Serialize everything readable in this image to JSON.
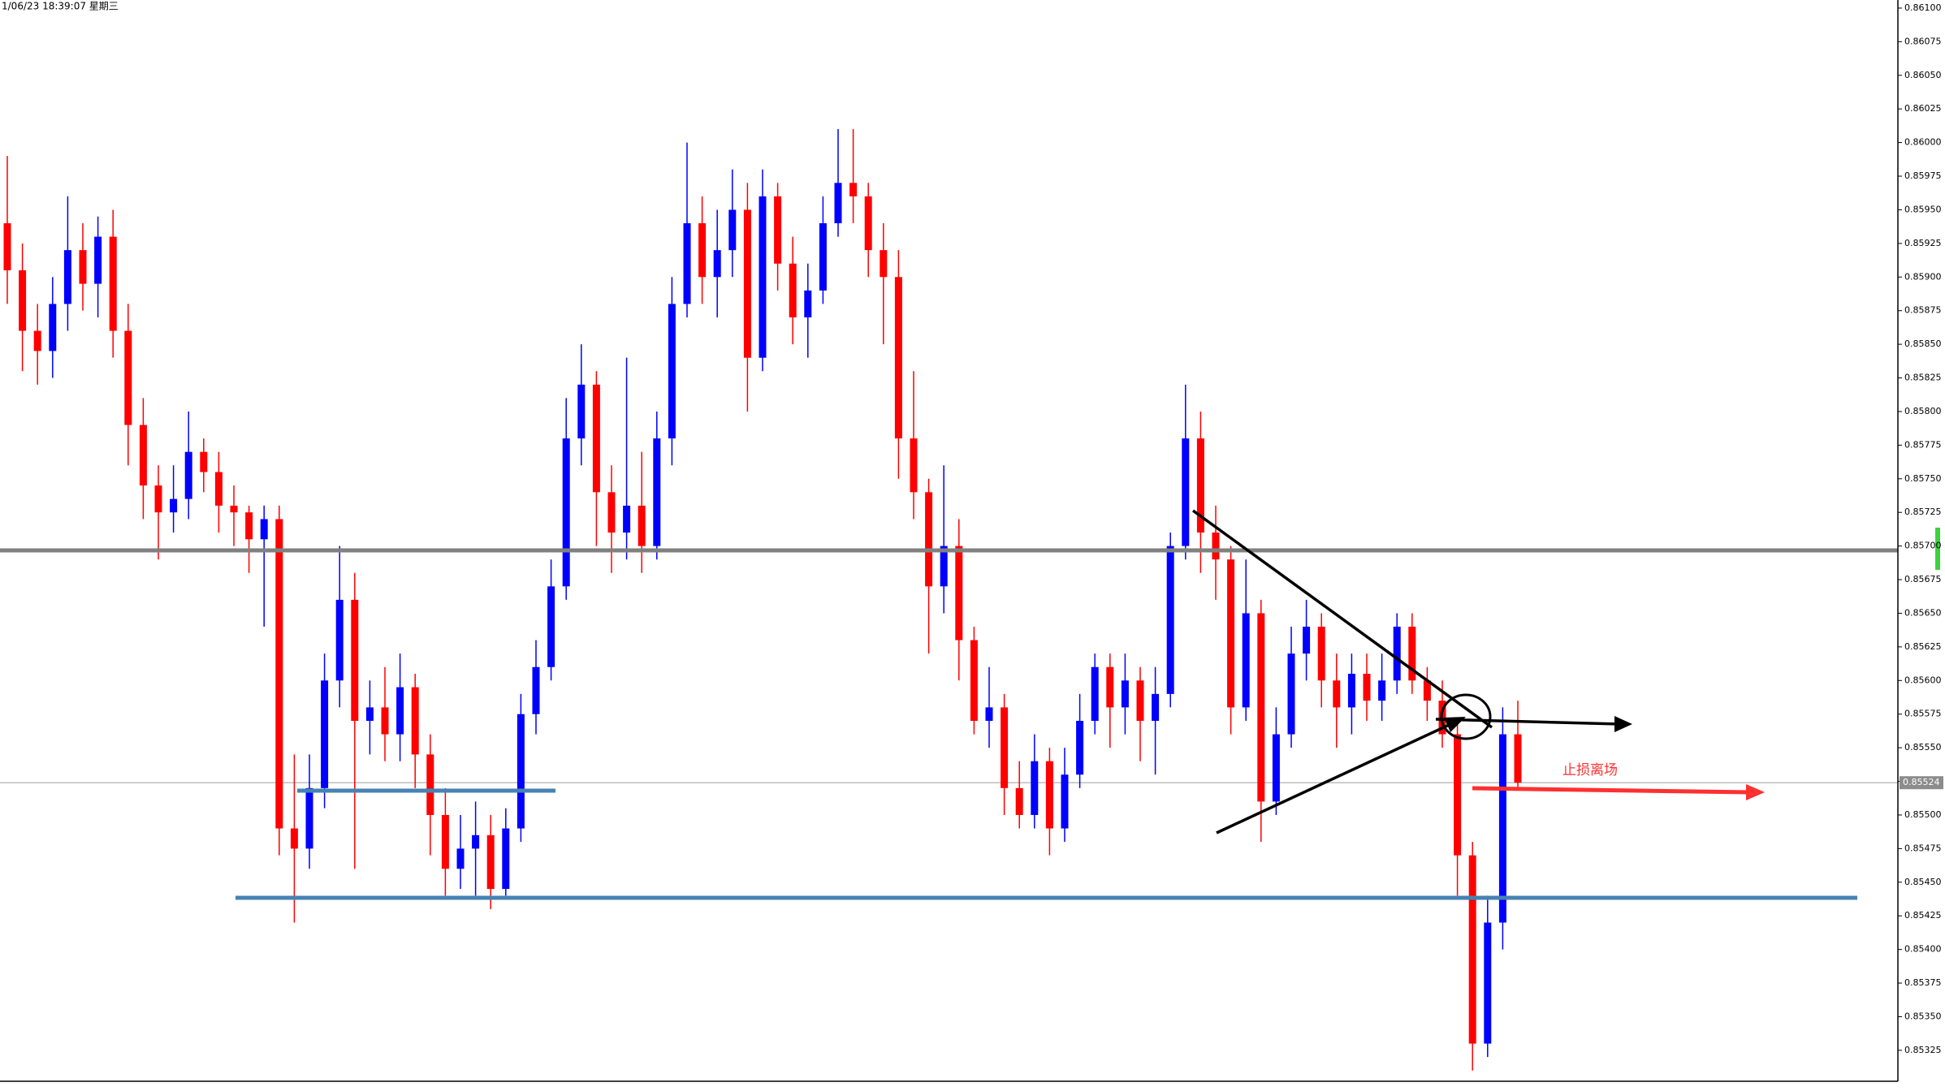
{
  "chart_data": {
    "type": "candlestick",
    "timestamp": "1/06/23 18:39:07 星期三",
    "annotation": "止损离场",
    "up_color": "#0000ff",
    "down_color": "#ff0000",
    "last_price": 0.85524,
    "ylim": [
      0.85302,
      0.86106
    ],
    "yticks": [
      {
        "value": 0.85325,
        "label": "0.85325"
      },
      {
        "value": 0.8535,
        "label": "0.85350"
      },
      {
        "value": 0.85375,
        "label": "0.85375"
      },
      {
        "value": 0.854,
        "label": "0.85400"
      },
      {
        "value": 0.85425,
        "label": "0.85425"
      },
      {
        "value": 0.8545,
        "label": "0.85450"
      },
      {
        "value": 0.85475,
        "label": "0.85475"
      },
      {
        "value": 0.855,
        "label": "0.85500"
      },
      {
        "value": 0.85525,
        "label": "0.85525"
      },
      {
        "value": 0.8555,
        "label": "0.85550"
      },
      {
        "value": 0.85575,
        "label": "0.85575"
      },
      {
        "value": 0.856,
        "label": "0.85600"
      },
      {
        "value": 0.85625,
        "label": "0.85625"
      },
      {
        "value": 0.8565,
        "label": "0.85650"
      },
      {
        "value": 0.85675,
        "label": "0.85675"
      },
      {
        "value": 0.857,
        "label": "0.85700"
      },
      {
        "value": 0.85725,
        "label": "0.85725"
      },
      {
        "value": 0.8575,
        "label": "0.85750"
      },
      {
        "value": 0.85775,
        "label": "0.85775"
      },
      {
        "value": 0.858,
        "label": "0.85800"
      },
      {
        "value": 0.85825,
        "label": "0.85825"
      },
      {
        "value": 0.8585,
        "label": "0.85850"
      },
      {
        "value": 0.85875,
        "label": "0.85875"
      },
      {
        "value": 0.859,
        "label": "0.85900"
      },
      {
        "value": 0.85925,
        "label": "0.85925"
      },
      {
        "value": 0.8595,
        "label": "0.85950"
      },
      {
        "value": 0.85975,
        "label": "0.85975"
      },
      {
        "value": 0.86,
        "label": "0.86000"
      },
      {
        "value": 0.86025,
        "label": "0.86025"
      },
      {
        "value": 0.8605,
        "label": "0.86050"
      },
      {
        "value": 0.86075,
        "label": "0.86075"
      },
      {
        "value": 0.861,
        "label": "0.86100"
      }
    ],
    "open": [
      0.8594,
      0.85905,
      0.8586,
      0.85845,
      0.8588,
      0.8592,
      0.85895,
      0.8593,
      0.8586,
      0.8579,
      0.85745,
      0.85725,
      0.85735,
      0.8577,
      0.85755,
      0.8573,
      0.85725,
      0.85705,
      0.8572,
      0.8549,
      0.85475,
      0.8552,
      0.856,
      0.8566,
      0.8557,
      0.8558,
      0.8556,
      0.85595,
      0.85545,
      0.855,
      0.8546,
      0.85475,
      0.85485,
      0.85445,
      0.8549,
      0.85575,
      0.8561,
      0.8567,
      0.8578,
      0.8582,
      0.8574,
      0.8571,
      0.8573,
      0.857,
      0.8578,
      0.8588,
      0.8594,
      0.859,
      0.8592,
      0.8595,
      0.8584,
      0.8596,
      0.8591,
      0.8587,
      0.8589,
      0.8594,
      0.8597,
      0.8596,
      0.8592,
      0.859,
      0.8578,
      0.8574,
      0.8567,
      0.857,
      0.8563,
      0.8557,
      0.8558,
      0.8552,
      0.855,
      0.8554,
      0.8549,
      0.8553,
      0.8557,
      0.8561,
      0.8558,
      0.856,
      0.8557,
      0.8559,
      0.857,
      0.8578,
      0.8571,
      0.8569,
      0.8558,
      0.8565,
      0.8551,
      0.8556,
      0.8562,
      0.8564,
      0.856,
      0.8558,
      0.85605,
      0.85585,
      0.856,
      0.8564,
      0.856,
      0.85585,
      0.8556,
      0.8547,
      0.8533,
      0.8542,
      0.8556
    ],
    "high": [
      0.8599,
      0.85925,
      0.8588,
      0.859,
      0.8596,
      0.8594,
      0.85945,
      0.8595,
      0.8588,
      0.8581,
      0.8576,
      0.8576,
      0.858,
      0.8578,
      0.8577,
      0.85745,
      0.8573,
      0.8573,
      0.8573,
      0.85545,
      0.85545,
      0.8562,
      0.857,
      0.8568,
      0.856,
      0.8561,
      0.8562,
      0.85605,
      0.8556,
      0.8552,
      0.855,
      0.8551,
      0.855,
      0.85505,
      0.8559,
      0.8563,
      0.8569,
      0.8581,
      0.8585,
      0.8583,
      0.8576,
      0.8584,
      0.8577,
      0.858,
      0.859,
      0.86,
      0.8596,
      0.8595,
      0.8598,
      0.8597,
      0.8598,
      0.8597,
      0.8593,
      0.8591,
      0.8596,
      0.8601,
      0.8601,
      0.8597,
      0.8594,
      0.8592,
      0.8583,
      0.8575,
      0.8576,
      0.8572,
      0.8564,
      0.8561,
      0.8559,
      0.8554,
      0.8556,
      0.8555,
      0.8555,
      0.8559,
      0.8562,
      0.8562,
      0.8562,
      0.8561,
      0.8561,
      0.8571,
      0.8582,
      0.858,
      0.8573,
      0.857,
      0.8569,
      0.8566,
      0.8558,
      0.8564,
      0.8566,
      0.8565,
      0.8562,
      0.8562,
      0.8562,
      0.8562,
      0.8565,
      0.8565,
      0.8561,
      0.856,
      0.8557,
      0.8548,
      0.8544,
      0.8558,
      0.85585
    ],
    "low": [
      0.8588,
      0.8583,
      0.8582,
      0.85825,
      0.8586,
      0.85875,
      0.8587,
      0.8584,
      0.8576,
      0.8572,
      0.8569,
      0.8571,
      0.8572,
      0.8574,
      0.8571,
      0.857,
      0.8568,
      0.8564,
      0.8547,
      0.8542,
      0.8546,
      0.85505,
      0.8558,
      0.8546,
      0.85545,
      0.8554,
      0.8554,
      0.8552,
      0.8547,
      0.8544,
      0.85445,
      0.8544,
      0.8543,
      0.8544,
      0.8548,
      0.8556,
      0.856,
      0.8566,
      0.8576,
      0.857,
      0.8568,
      0.8569,
      0.8568,
      0.8569,
      0.8576,
      0.8587,
      0.8588,
      0.8587,
      0.859,
      0.858,
      0.8583,
      0.8589,
      0.8585,
      0.8584,
      0.8588,
      0.8593,
      0.8594,
      0.859,
      0.8585,
      0.8575,
      0.8572,
      0.8562,
      0.8565,
      0.856,
      0.8556,
      0.8555,
      0.855,
      0.8549,
      0.8549,
      0.8547,
      0.8548,
      0.8552,
      0.8556,
      0.8555,
      0.8556,
      0.8554,
      0.8553,
      0.8558,
      0.8569,
      0.8568,
      0.8566,
      0.8556,
      0.8557,
      0.8548,
      0.855,
      0.8555,
      0.856,
      0.8558,
      0.8555,
      0.8556,
      0.8557,
      0.8557,
      0.8559,
      0.8559,
      0.8557,
      0.8555,
      0.8544,
      0.8531,
      0.8532,
      0.854,
      0.8552
    ],
    "close": [
      0.85905,
      0.8586,
      0.85845,
      0.8588,
      0.8592,
      0.85895,
      0.8593,
      0.8586,
      0.8579,
      0.85745,
      0.85725,
      0.85735,
      0.8577,
      0.85755,
      0.8573,
      0.85725,
      0.85705,
      0.8572,
      0.8549,
      0.85475,
      0.8552,
      0.856,
      0.8566,
      0.8557,
      0.8558,
      0.8556,
      0.85595,
      0.85545,
      0.855,
      0.8546,
      0.85475,
      0.85485,
      0.85445,
      0.8549,
      0.85575,
      0.8561,
      0.8567,
      0.8578,
      0.8582,
      0.8574,
      0.8571,
      0.8573,
      0.857,
      0.8578,
      0.8588,
      0.8594,
      0.859,
      0.8592,
      0.8595,
      0.8584,
      0.8596,
      0.8591,
      0.8587,
      0.8589,
      0.8594,
      0.8597,
      0.8596,
      0.8592,
      0.859,
      0.8578,
      0.8574,
      0.8567,
      0.857,
      0.8563,
      0.8557,
      0.8558,
      0.8552,
      0.855,
      0.8554,
      0.8549,
      0.8553,
      0.8557,
      0.8561,
      0.8558,
      0.856,
      0.8557,
      0.8559,
      0.857,
      0.8578,
      0.8571,
      0.8569,
      0.8558,
      0.8565,
      0.8551,
      0.8556,
      0.8562,
      0.8564,
      0.856,
      0.8558,
      0.85605,
      0.85585,
      0.856,
      0.8564,
      0.856,
      0.85585,
      0.8556,
      0.8547,
      0.8533,
      0.8542,
      0.8556,
      0.85524
    ]
  }
}
